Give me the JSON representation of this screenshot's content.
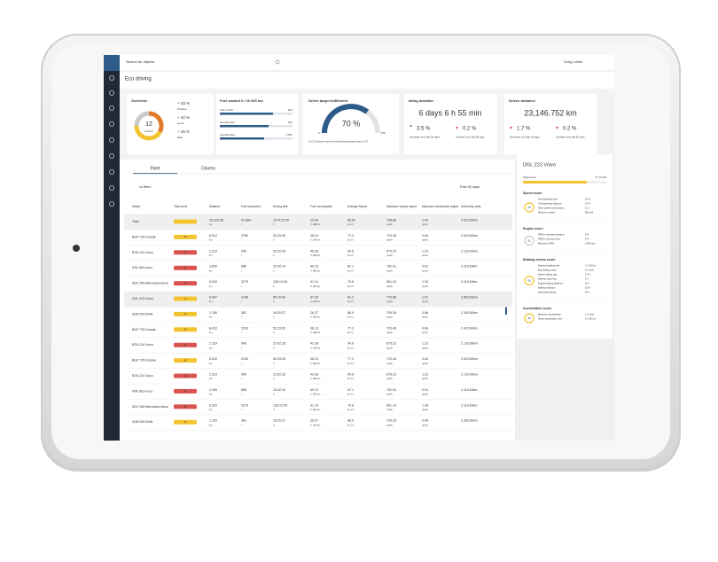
{
  "search_placeholder": "Search for objects",
  "user": "Greg Luther",
  "page_title": "Eco driving",
  "overview": {
    "title": "Overview",
    "total": "12",
    "total_label": "Drivers",
    "items": [
      {
        "change": "+ 33 %",
        "label": "Positive"
      },
      {
        "change": "+ 42 %",
        "label": "Good"
      },
      {
        "change": "+ 25 %",
        "label": "Bad"
      }
    ]
  },
  "fuel_wasted": {
    "title": "Fuel wasted 0 / 10 000 km",
    "bars": [
      {
        "label": "This month",
        "value": "601"
      },
      {
        "label": "Last 30 days",
        "value": "601"
      },
      {
        "label": "Last 90 days",
        "value": "1 097"
      }
    ]
  },
  "target": {
    "title": "Driver target fulfillment",
    "value": "70 %",
    "min": "0",
    "max": "100",
    "note": "9 of 12 drivers meet the total driving target score of 70"
  },
  "idling": {
    "title": "Idling duration",
    "value": "6 days 6 h 55 min",
    "changes": [
      {
        "value": "3.5 %",
        "label": "Decrease over last 30 days"
      },
      {
        "value": "0.2 %",
        "label": "Increase over last 90 days"
      }
    ]
  },
  "distance": {
    "title": "Driven distance",
    "value": "23,146.752 km",
    "changes": [
      {
        "value": "1.7 %",
        "label": "Decrease over last 30 days"
      },
      {
        "value": "0.2 %",
        "label": "Increase over last 90 days"
      }
    ]
  },
  "tabs": [
    "Fleet",
    "Drivers"
  ],
  "filter": "no filters",
  "period": "Past 90 days",
  "table": {
    "columns": [
      "Object",
      "Total score",
      "Distance",
      "Fuel consumed",
      "Driving time",
      "Fuel consumption",
      "Average Speed",
      "Maximum engine speed",
      "Maximum combustion engine",
      "Delivering costs"
    ],
    "units": [
      "km",
      "l",
      "h",
      "l / 100 km",
      "km / h",
      "rpm/h",
      "rpm/h"
    ],
    "rows": [
      {
        "object": "Total",
        "score": "",
        "color": "#f4c430",
        "cells": [
          "15,329.85",
          "41,884",
          "1079:22:50",
          "23.45",
          "98.52",
          "758.86",
          "2.94",
          "2.52/100km"
        ]
      },
      {
        "object": "BGP 735 Scania",
        "score": "69",
        "color": "#f4c430",
        "cells": [
          "8,912",
          "2750",
          "52:23:05",
          "38.13",
          "77.2",
          "723.46",
          "0.84",
          "2.32/100km"
        ]
      },
      {
        "object": "BTB 134 Volvo",
        "score": "42",
        "color": "#d9534f",
        "cells": [
          "2,319",
          "945",
          "22:02:28",
          "45.38",
          "54.6",
          "675.23",
          "1.23",
          "2.13/100km"
        ]
      },
      {
        "object": "ATA 183 Iveco",
        "score": "41",
        "color": "#d9534f",
        "cells": [
          "3,690",
          "885",
          "23:42:14",
          "49.13",
          "87.1",
          "782.51",
          "0.91",
          "2.11/100km"
        ]
      },
      {
        "object": "SDX 359 Mercedes-Benz",
        "score": "38",
        "color": "#d9534f",
        "cells": [
          "6,520",
          "3279",
          "136:12:05",
          "41.14",
          "79.8",
          "651.24",
          "1.34",
          "2.11/100km"
        ]
      },
      {
        "object": "DGL 223 Volvo",
        "score": "77",
        "color": "#f4c430",
        "cells": [
          "6,007",
          "2148",
          "55:10:40",
          "37.28",
          "81.2",
          "770.85",
          "1.01",
          "2.85/100km"
        ]
      },
      {
        "object": "SDB 539 MAN",
        "score": "71",
        "color": "#f4c430",
        "cells": [
          "1,190",
          "381",
          "16:20:27",
          "26.37",
          "88.9",
          "709.28",
          "0.98",
          "2.35/100km"
        ]
      },
      {
        "object": "BGP 735 Scania",
        "score": "69",
        "color": "#f4c430",
        "cells": [
          "8,912",
          "2230",
          "52:23:05",
          "38.13",
          "77.2",
          "723.46",
          "0.84",
          "2.42/100km"
        ]
      },
      {
        "object": "BTB 134 Volvo",
        "score": "42",
        "color": "#d9534f",
        "cells": [
          "2,319",
          "945",
          "22:02:28",
          "42.38",
          "54.6",
          "675.23",
          "1.23",
          "2.13/100km"
        ]
      },
      {
        "object": "BGP 735 Scania",
        "score": "69",
        "color": "#f4c430",
        "cells": [
          "6,512",
          "2230",
          "52:23:05",
          "38.13",
          "77.2",
          "723.46",
          "0.84",
          "2.42/100km"
        ]
      },
      {
        "object": "BTB 134 Volvo",
        "score": "42",
        "color": "#d9534f",
        "cells": [
          "2,319",
          "945",
          "22:02:28",
          "42.38",
          "54.6",
          "675.23",
          "1.23",
          "2.13/100km"
        ]
      },
      {
        "object": "ATA 183 Iveco",
        "score": "41",
        "color": "#d9534f",
        "cells": [
          "2,495",
          "885",
          "23:42:10",
          "49.13",
          "87.1",
          "782.51",
          "0.91",
          "2.11/100km"
        ]
      },
      {
        "object": "SDX 359 Mercedes-Benz",
        "score": "38",
        "color": "#d9534f",
        "cells": [
          "6,520",
          "3279",
          "136:12:05",
          "41.14",
          "79.8",
          "651.24",
          "1.34",
          "2.11/100km"
        ]
      },
      {
        "object": "SDB 539 MAN",
        "score": "71",
        "color": "#f4c430",
        "cells": [
          "1,195",
          "381",
          "16:20:27",
          "26.37",
          "88.9",
          "709.28",
          "0.98",
          "2.35/100km"
        ]
      }
    ]
  },
  "panel": {
    "title": "DGL 223 Volvo",
    "total_label": "Total score",
    "total_value": "77 of 100",
    "sections": [
      {
        "title": "Speed score",
        "score": "78",
        "items": [
          [
            "Overspeeding time",
            "19 %"
          ],
          [
            "Overspeeding distance",
            "13 %"
          ],
          [
            "Extra speed consumption",
            "2.1 l"
          ],
          [
            "Maximum speed",
            "89 km/h"
          ]
        ]
      },
      {
        "title": "Engine score",
        "score": "51",
        "items": [
          [
            "RPM in red band distance",
            "9 %"
          ],
          [
            "RPM in red band time",
            "6 %"
          ],
          [
            "Maximum RPM",
            "2 800 rpm"
          ]
        ]
      },
      {
        "title": "Braking events score",
        "score": "65",
        "items": [
          [
            "Extreme braking rate",
            "2 / 100 km"
          ],
          [
            "Max braking value",
            "0.4 m/s2"
          ],
          [
            "Harsh braking rate",
            "12 %"
          ],
          [
            "Braking stops rate",
            "1.4"
          ],
          [
            "Engine braking distance",
            "8 %"
          ],
          [
            "Braking distance",
            "15 %"
          ],
          [
            "Extended braking",
            "8 %"
          ]
        ]
      },
      {
        "title": "Acceleration score",
        "score": "45",
        "items": [
          [
            "Maximum acceleration",
            "1.5 m/s2"
          ],
          [
            "Harsh acceleration rate",
            "5 / 100 km"
          ]
        ]
      }
    ]
  }
}
